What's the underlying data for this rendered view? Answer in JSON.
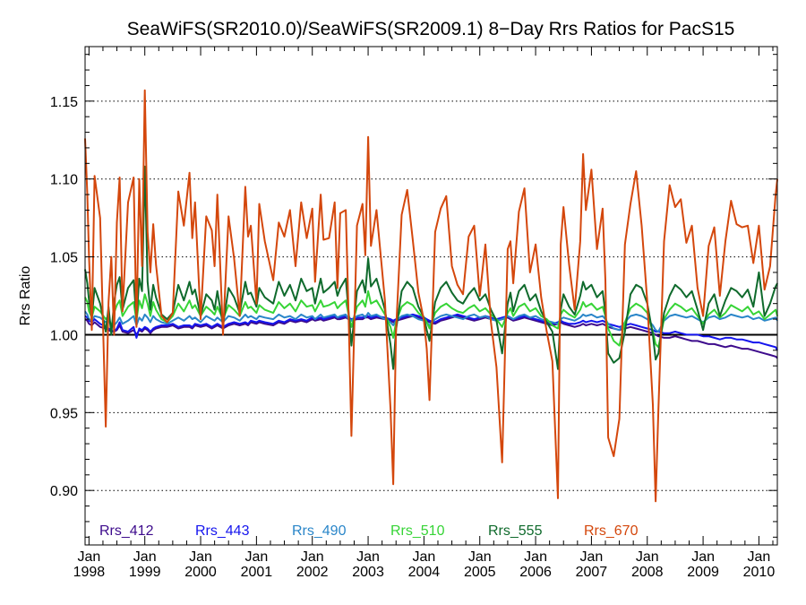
{
  "chart_data": {
    "type": "line",
    "title": "SeaWiFS(SR2010.0)/SeaWiFS(SR2009.1) 8−Day Rrs Ratios for PacS15",
    "ylabel": "Rrs Ratio",
    "xlabel": "",
    "xlim": [
      1997.93,
      2010.33
    ],
    "ylim": [
      0.865,
      1.185
    ],
    "y_ticks": [
      {
        "value": 0.9,
        "label": "0.90"
      },
      {
        "value": 0.95,
        "label": "0.95"
      },
      {
        "value": 1.0,
        "label": "1.00"
      },
      {
        "value": 1.05,
        "label": "1.05"
      },
      {
        "value": 1.1,
        "label": "1.10"
      },
      {
        "value": 1.15,
        "label": "1.15"
      }
    ],
    "x_ticks": [
      {
        "value": 1998,
        "month": "Jan",
        "year": "1998"
      },
      {
        "value": 1999,
        "month": "Jan",
        "year": "1999"
      },
      {
        "value": 2000,
        "month": "Jan",
        "year": "2000"
      },
      {
        "value": 2001,
        "month": "Jan",
        "year": "2001"
      },
      {
        "value": 2002,
        "month": "Jan",
        "year": "2002"
      },
      {
        "value": 2003,
        "month": "Jan",
        "year": "2003"
      },
      {
        "value": 2004,
        "month": "Jan",
        "year": "2004"
      },
      {
        "value": 2005,
        "month": "Jan",
        "year": "2005"
      },
      {
        "value": 2006,
        "month": "Jan",
        "year": "2006"
      },
      {
        "value": 2007,
        "month": "Jan",
        "year": "2007"
      },
      {
        "value": 2008,
        "month": "Jan",
        "year": "2008"
      },
      {
        "value": 2009,
        "month": "Jan",
        "year": "2009"
      },
      {
        "value": 2010,
        "month": "Jan",
        "year": "2010"
      }
    ],
    "grid": {
      "horizontal_dotted": true,
      "vertical": false
    },
    "reference_line": 1.0,
    "legend_position": "bottom",
    "x": [
      1997.93,
      1997.97,
      1998.0,
      1998.05,
      1998.1,
      1998.2,
      1998.3,
      1998.35,
      1998.4,
      1998.45,
      1998.5,
      1998.55,
      1998.6,
      1998.7,
      1998.8,
      1998.85,
      1998.9,
      1998.95,
      1999.0,
      1999.05,
      1999.1,
      1999.15,
      1999.2,
      1999.3,
      1999.4,
      1999.5,
      1999.6,
      1999.7,
      1999.8,
      1999.85,
      1999.9,
      2000.0,
      2000.1,
      2000.2,
      2000.25,
      2000.3,
      2000.4,
      2000.5,
      2000.6,
      2000.7,
      2000.8,
      2000.85,
      2000.9,
      2001.0,
      2001.05,
      2001.15,
      2001.3,
      2001.4,
      2001.5,
      2001.6,
      2001.7,
      2001.8,
      2001.9,
      2002.0,
      2002.05,
      2002.15,
      2002.2,
      2002.3,
      2002.4,
      2002.45,
      2002.5,
      2002.6,
      2002.65,
      2002.7,
      2002.8,
      2002.9,
      2002.95,
      2003.0,
      2003.05,
      2003.15,
      2003.3,
      2003.4,
      2003.45,
      2003.5,
      2003.6,
      2003.7,
      2003.8,
      2003.9,
      2004.0,
      2004.05,
      2004.1,
      2004.2,
      2004.3,
      2004.4,
      2004.5,
      2004.6,
      2004.7,
      2004.8,
      2004.9,
      2005.0,
      2005.1,
      2005.2,
      2005.3,
      2005.4,
      2005.5,
      2005.55,
      2005.6,
      2005.7,
      2005.8,
      2005.9,
      2006.0,
      2006.1,
      2006.2,
      2006.3,
      2006.4,
      2006.45,
      2006.5,
      2006.6,
      2006.7,
      2006.8,
      2006.85,
      2006.9,
      2007.0,
      2007.1,
      2007.2,
      2007.25,
      2007.3,
      2007.4,
      2007.5,
      2007.6,
      2007.7,
      2007.8,
      2007.9,
      2008.0,
      2008.1,
      2008.15,
      2008.2,
      2008.3,
      2008.4,
      2008.5,
      2008.6,
      2008.7,
      2008.8,
      2008.9,
      2009.0,
      2009.1,
      2009.2,
      2009.3,
      2009.4,
      2009.5,
      2009.6,
      2009.7,
      2009.8,
      2009.9,
      2010.0,
      2010.1,
      2010.2,
      2010.3,
      2010.33
    ],
    "series": [
      {
        "name": "Rrs_412",
        "color": "#3d0b8c",
        "width": 2,
        "values": [
          1.01,
          1.009,
          1.007,
          1.006,
          1.008,
          1.005,
          1.004,
          1.003,
          1.002,
          1.002,
          1.003,
          1.006,
          1.002,
          1.001,
          1.003,
          1.0,
          1.003,
          1.002,
          1.004,
          1.003,
          1.001,
          1.003,
          1.004,
          1.005,
          1.005,
          1.006,
          1.004,
          1.005,
          1.005,
          1.004,
          1.006,
          1.005,
          1.006,
          1.004,
          1.005,
          1.006,
          1.004,
          1.006,
          1.007,
          1.006,
          1.007,
          1.006,
          1.008,
          1.007,
          1.008,
          1.007,
          1.006,
          1.008,
          1.007,
          1.009,
          1.008,
          1.009,
          1.008,
          1.01,
          1.009,
          1.01,
          1.009,
          1.01,
          1.011,
          1.01,
          1.01,
          1.011,
          1.01,
          1.009,
          1.01,
          1.01,
          1.011,
          1.011,
          1.01,
          1.011,
          1.01,
          1.009,
          1.008,
          1.009,
          1.01,
          1.011,
          1.012,
          1.011,
          1.01,
          1.009,
          1.008,
          1.007,
          1.009,
          1.01,
          1.011,
          1.012,
          1.011,
          1.01,
          1.009,
          1.01,
          1.011,
          1.01,
          1.009,
          1.01,
          1.011,
          1.01,
          1.009,
          1.01,
          1.011,
          1.01,
          1.009,
          1.008,
          1.007,
          1.006,
          1.007,
          1.008,
          1.007,
          1.006,
          1.005,
          1.006,
          1.007,
          1.006,
          1.007,
          1.006,
          1.007,
          1.006,
          1.005,
          1.004,
          1.003,
          1.004,
          1.005,
          1.004,
          1.003,
          1.002,
          1.001,
          1.0,
          0.999,
          0.998,
          0.998,
          0.999,
          0.998,
          0.997,
          0.996,
          0.996,
          0.995,
          0.994,
          0.994,
          0.993,
          0.992,
          0.993,
          0.992,
          0.991,
          0.991,
          0.99,
          0.989,
          0.988,
          0.987,
          0.986,
          0.985
        ]
      },
      {
        "name": "Rrs_443",
        "color": "#1515ee",
        "width": 2,
        "values": [
          1.012,
          1.011,
          1.009,
          1.008,
          1.01,
          1.007,
          1.005,
          1.004,
          1.003,
          1.002,
          1.004,
          1.008,
          1.003,
          1.002,
          1.005,
          0.998,
          1.004,
          1.003,
          1.005,
          1.004,
          1.002,
          1.004,
          1.005,
          1.006,
          1.006,
          1.007,
          1.005,
          1.006,
          1.006,
          1.005,
          1.007,
          1.006,
          1.007,
          1.005,
          1.006,
          1.007,
          1.005,
          1.007,
          1.008,
          1.007,
          1.008,
          1.007,
          1.009,
          1.008,
          1.009,
          1.008,
          1.007,
          1.009,
          1.008,
          1.01,
          1.009,
          1.01,
          1.009,
          1.011,
          1.01,
          1.011,
          1.01,
          1.011,
          1.012,
          1.011,
          1.011,
          1.012,
          1.011,
          1.01,
          1.011,
          1.011,
          1.012,
          1.012,
          1.011,
          1.012,
          1.011,
          1.01,
          1.009,
          1.01,
          1.011,
          1.012,
          1.013,
          1.012,
          1.011,
          1.01,
          1.009,
          1.008,
          1.01,
          1.011,
          1.012,
          1.013,
          1.012,
          1.011,
          1.01,
          1.011,
          1.012,
          1.011,
          1.01,
          1.011,
          1.012,
          1.011,
          1.01,
          1.011,
          1.012,
          1.011,
          1.01,
          1.009,
          1.008,
          1.007,
          1.008,
          1.009,
          1.008,
          1.007,
          1.007,
          1.008,
          1.009,
          1.008,
          1.009,
          1.008,
          1.009,
          1.008,
          1.007,
          1.006,
          1.005,
          1.006,
          1.007,
          1.006,
          1.005,
          1.004,
          1.003,
          1.002,
          1.002,
          1.001,
          1.001,
          1.002,
          1.001,
          1.0,
          1.0,
          1.0,
          0.999,
          0.999,
          0.998,
          0.997,
          0.998,
          0.998,
          0.997,
          0.997,
          0.996,
          0.995,
          0.995,
          0.994,
          0.993,
          0.992,
          0.99
        ]
      },
      {
        "name": "Rrs_490",
        "color": "#2a86c9",
        "width": 2,
        "values": [
          1.015,
          1.013,
          1.01,
          1.009,
          1.012,
          1.011,
          1.008,
          1.01,
          1.005,
          1.006,
          1.008,
          1.011,
          1.007,
          1.009,
          1.012,
          1.006,
          1.011,
          1.009,
          1.013,
          1.011,
          1.008,
          1.012,
          1.01,
          1.008,
          1.007,
          1.009,
          1.011,
          1.009,
          1.012,
          1.01,
          1.011,
          1.008,
          1.012,
          1.01,
          1.009,
          1.011,
          1.008,
          1.012,
          1.011,
          1.009,
          1.013,
          1.011,
          1.012,
          1.01,
          1.012,
          1.011,
          1.01,
          1.013,
          1.011,
          1.012,
          1.01,
          1.013,
          1.011,
          1.012,
          1.01,
          1.013,
          1.011,
          1.012,
          1.013,
          1.011,
          1.012,
          1.013,
          1.01,
          1.009,
          1.012,
          1.013,
          1.011,
          1.014,
          1.012,
          1.013,
          1.01,
          1.008,
          1.006,
          1.009,
          1.012,
          1.013,
          1.012,
          1.01,
          1.009,
          1.008,
          1.006,
          1.01,
          1.012,
          1.013,
          1.012,
          1.011,
          1.01,
          1.012,
          1.013,
          1.011,
          1.012,
          1.01,
          1.009,
          1.01,
          1.012,
          1.011,
          1.01,
          1.012,
          1.013,
          1.011,
          1.012,
          1.01,
          1.009,
          1.008,
          1.007,
          1.01,
          1.011,
          1.01,
          1.009,
          1.011,
          1.013,
          1.012,
          1.013,
          1.011,
          1.012,
          1.01,
          1.007,
          1.004,
          1.003,
          1.008,
          1.012,
          1.013,
          1.012,
          1.01,
          1.006,
          1.003,
          1.002,
          1.009,
          1.012,
          1.013,
          1.012,
          1.011,
          1.012,
          1.01,
          1.008,
          1.011,
          1.012,
          1.01,
          1.011,
          1.013,
          1.012,
          1.011,
          1.012,
          1.01,
          1.011,
          1.009,
          1.01,
          1.011,
          1.009
        ]
      },
      {
        "name": "Rrs_510",
        "color": "#36d436",
        "width": 2,
        "values": [
          1.024,
          1.021,
          1.015,
          1.011,
          1.018,
          1.015,
          1.01,
          1.012,
          1.005,
          1.014,
          1.019,
          1.022,
          1.012,
          1.018,
          1.021,
          1.009,
          1.022,
          1.017,
          1.026,
          1.02,
          1.012,
          1.021,
          1.016,
          1.01,
          1.008,
          1.012,
          1.02,
          1.015,
          1.022,
          1.017,
          1.019,
          1.012,
          1.018,
          1.015,
          1.013,
          1.018,
          1.01,
          1.019,
          1.016,
          1.012,
          1.021,
          1.017,
          1.018,
          1.014,
          1.019,
          1.016,
          1.014,
          1.021,
          1.017,
          1.02,
          1.015,
          1.022,
          1.018,
          1.019,
          1.015,
          1.022,
          1.018,
          1.019,
          1.021,
          1.017,
          1.019,
          1.022,
          1.013,
          1.005,
          1.018,
          1.022,
          1.018,
          1.028,
          1.02,
          1.022,
          1.013,
          1.005,
          0.998,
          1.008,
          1.018,
          1.021,
          1.019,
          1.014,
          1.011,
          1.008,
          1.004,
          1.014,
          1.018,
          1.02,
          1.017,
          1.015,
          1.014,
          1.017,
          1.019,
          1.015,
          1.017,
          1.013,
          1.01,
          1.005,
          1.014,
          1.017,
          1.012,
          1.018,
          1.02,
          1.015,
          1.017,
          1.012,
          1.01,
          1.006,
          1.004,
          1.013,
          1.016,
          1.013,
          1.011,
          1.016,
          1.021,
          1.018,
          1.02,
          1.016,
          1.018,
          1.012,
          1.004,
          0.996,
          0.993,
          1.008,
          1.017,
          1.02,
          1.018,
          1.014,
          1.002,
          0.994,
          0.992,
          1.01,
          1.016,
          1.02,
          1.018,
          1.015,
          1.017,
          1.012,
          1.007,
          1.013,
          1.016,
          1.011,
          1.014,
          1.019,
          1.017,
          1.015,
          1.018,
          1.013,
          1.015,
          1.01,
          1.013,
          1.016,
          1.012
        ]
      },
      {
        "name": "Rrs_555",
        "color": "#0f6a2c",
        "width": 2,
        "values": [
          1.042,
          1.033,
          1.022,
          1.011,
          1.03,
          1.02,
          1.002,
          1.018,
          1.0,
          1.021,
          1.032,
          1.037,
          1.016,
          1.03,
          1.035,
          1.01,
          1.036,
          1.028,
          1.108,
          1.034,
          1.016,
          1.032,
          1.024,
          1.013,
          1.01,
          1.014,
          1.032,
          1.022,
          1.034,
          1.026,
          1.029,
          1.012,
          1.026,
          1.022,
          1.016,
          1.028,
          1.006,
          1.03,
          1.024,
          1.014,
          1.034,
          1.026,
          1.027,
          1.018,
          1.03,
          1.024,
          1.02,
          1.034,
          1.025,
          1.032,
          1.022,
          1.036,
          1.028,
          1.03,
          1.02,
          1.036,
          1.027,
          1.03,
          1.034,
          1.025,
          1.03,
          1.036,
          1.015,
          0.993,
          1.028,
          1.035,
          1.027,
          1.049,
          1.031,
          1.036,
          1.016,
          0.994,
          0.978,
          1.003,
          1.028,
          1.034,
          1.03,
          1.018,
          1.011,
          1.003,
          0.996,
          1.021,
          1.03,
          1.034,
          1.027,
          1.022,
          1.02,
          1.026,
          1.03,
          1.022,
          1.026,
          1.016,
          1.009,
          0.988,
          1.02,
          1.027,
          1.015,
          1.028,
          1.032,
          1.022,
          1.026,
          1.015,
          1.008,
          1.002,
          0.978,
          1.016,
          1.026,
          1.018,
          1.013,
          1.025,
          1.034,
          1.029,
          1.032,
          1.024,
          1.028,
          1.014,
          0.988,
          0.982,
          0.985,
          1.002,
          1.026,
          1.032,
          1.03,
          1.02,
          1.0,
          0.984,
          0.988,
          1.014,
          1.025,
          1.032,
          1.029,
          1.024,
          1.028,
          1.016,
          1.003,
          1.02,
          1.026,
          1.012,
          1.022,
          1.03,
          1.028,
          1.024,
          1.029,
          1.018,
          1.04,
          1.012,
          1.02,
          1.031,
          1.033
        ]
      },
      {
        "name": "Rrs_670",
        "color": "#d4470c",
        "width": 2,
        "values": [
          1.126,
          1.09,
          1.05,
          1.003,
          1.102,
          1.075,
          0.941,
          1.021,
          1.05,
          1.0,
          1.072,
          1.101,
          1.015,
          1.085,
          1.101,
          1.005,
          1.1,
          1.044,
          1.157,
          1.066,
          1.04,
          1.071,
          1.045,
          1.012,
          1.008,
          1.014,
          1.092,
          1.07,
          1.104,
          1.062,
          1.085,
          1.01,
          1.076,
          1.067,
          1.044,
          1.09,
          1.0,
          1.076,
          1.049,
          1.012,
          1.095,
          1.063,
          1.07,
          1.02,
          1.084,
          1.06,
          1.035,
          1.072,
          1.063,
          1.08,
          1.044,
          1.085,
          1.062,
          1.081,
          1.034,
          1.09,
          1.061,
          1.062,
          1.085,
          1.03,
          1.078,
          1.08,
          1.014,
          0.935,
          1.07,
          1.084,
          1.051,
          1.127,
          1.057,
          1.08,
          1.022,
          0.953,
          0.904,
          1.002,
          1.077,
          1.093,
          1.061,
          1.027,
          1.009,
          0.991,
          0.958,
          1.066,
          1.081,
          1.089,
          1.044,
          1.032,
          1.026,
          1.063,
          1.07,
          1.025,
          1.058,
          1.008,
          0.979,
          0.918,
          1.055,
          1.06,
          1.033,
          1.079,
          1.094,
          1.04,
          1.058,
          1.024,
          1.002,
          0.983,
          0.895,
          1.058,
          1.082,
          1.045,
          1.016,
          1.06,
          1.116,
          1.08,
          1.106,
          1.055,
          1.081,
          1.035,
          0.934,
          0.922,
          0.946,
          1.058,
          1.084,
          1.105,
          1.07,
          1.021,
          0.955,
          0.893,
          0.952,
          1.06,
          1.096,
          1.082,
          1.087,
          1.059,
          1.07,
          1.03,
          1.012,
          1.057,
          1.069,
          1.025,
          1.06,
          1.086,
          1.071,
          1.069,
          1.07,
          1.046,
          1.07,
          1.029,
          1.044,
          1.09,
          1.1
        ]
      }
    ]
  }
}
